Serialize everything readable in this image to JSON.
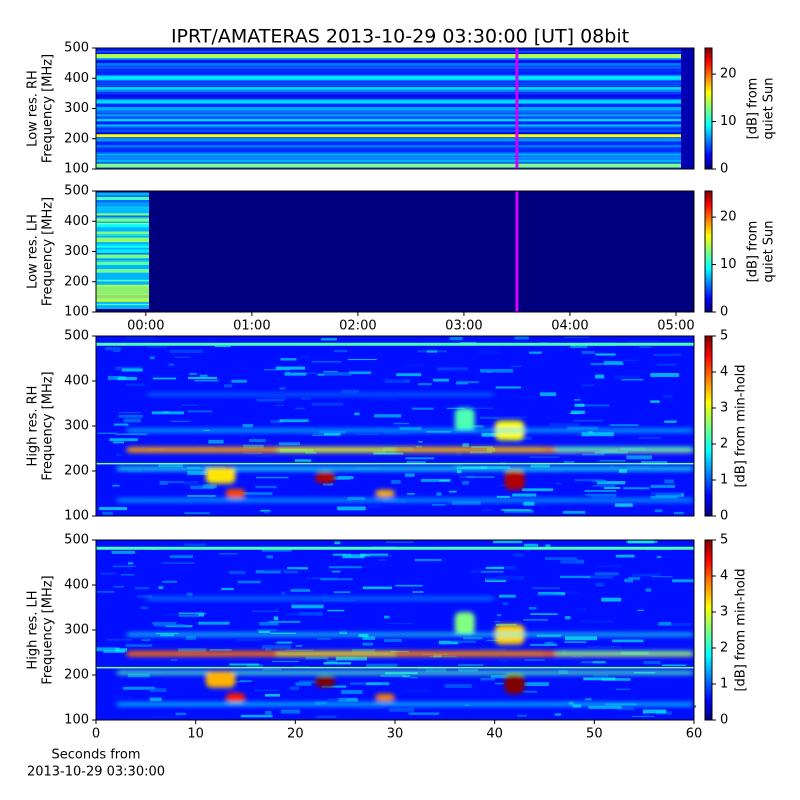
{
  "title": "IPRT/AMATERAS 2013-10-29 03:30:00 [UT]   08bit",
  "chart_data": [
    {
      "type": "spectrogram",
      "ylabel": [
        "Low res. RH",
        "Frequency [MHz]"
      ],
      "ylim": [
        100,
        500
      ],
      "yticks": [
        100,
        200,
        300,
        400,
        500
      ],
      "xlim": [
        -0.47,
        5.17
      ],
      "vline": 3.5,
      "vline_color": "#d400ff",
      "colorbar_label": [
        "[dB] from",
        "quiet Sun"
      ],
      "clim": [
        0,
        25.5
      ],
      "cticks": [
        0,
        10,
        20
      ]
    },
    {
      "type": "spectrogram",
      "ylabel": [
        "Low res. LH",
        "Frequency [MHz]"
      ],
      "ylim": [
        100,
        500
      ],
      "yticks": [
        100,
        200,
        300,
        400,
        500
      ],
      "xlim": [
        -0.47,
        5.17
      ],
      "vline": 3.5,
      "vline_color": "#d400ff",
      "xticks": [
        {
          "value": 0,
          "label": "00:00"
        },
        {
          "value": 1,
          "label": "01:00"
        },
        {
          "value": 2,
          "label": "02:00"
        },
        {
          "value": 3,
          "label": "03:00"
        },
        {
          "value": 4,
          "label": "04:00"
        },
        {
          "value": 5,
          "label": "05:00"
        }
      ],
      "colorbar_label": [
        "[dB] from",
        "quiet Sun"
      ],
      "clim": [
        0,
        25.5
      ],
      "cticks": [
        0,
        10,
        20
      ]
    },
    {
      "type": "spectrogram",
      "ylabel": [
        "High res. RH",
        "Frequency [MHz]"
      ],
      "ylim": [
        100,
        500
      ],
      "yticks": [
        100,
        200,
        300,
        400,
        500
      ],
      "xlim": [
        0,
        60
      ],
      "colorbar_label": [
        "[dB] from min-hold"
      ],
      "clim": [
        0,
        5
      ],
      "cticks": [
        0,
        1,
        2,
        3,
        4,
        5
      ]
    },
    {
      "type": "spectrogram",
      "ylabel": [
        "High res. LH",
        "Frequency [MHz]"
      ],
      "ylim": [
        100,
        500
      ],
      "yticks": [
        100,
        200,
        300,
        400,
        500
      ],
      "xlim": [
        0,
        60
      ],
      "xticks": [
        0,
        10,
        20,
        30,
        40,
        50,
        60
      ],
      "xlabel": [
        "Seconds from",
        "2013-10-29 03:30:00"
      ],
      "colorbar_label": [
        "[dB] from min-hold"
      ],
      "clim": [
        0,
        5
      ],
      "cticks": [
        0,
        1,
        2,
        3,
        4,
        5
      ]
    }
  ]
}
